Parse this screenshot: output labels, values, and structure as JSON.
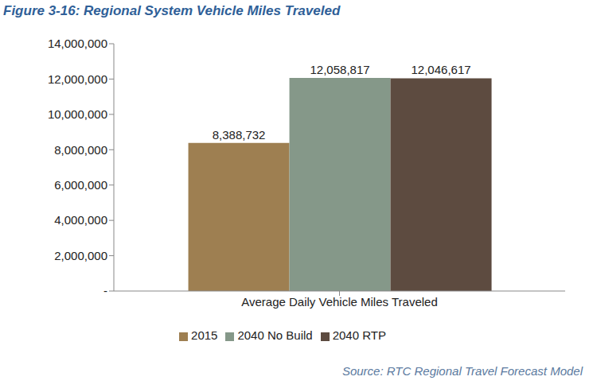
{
  "chart_data": {
    "type": "bar",
    "title": "Figure 3-16: Regional System Vehicle Miles Traveled",
    "source": "Source: RTC Regional Travel Forecast Model",
    "categories": [
      "Average Daily Vehicle Miles Traveled"
    ],
    "series": [
      {
        "name": "2015",
        "color": "#9e7f51",
        "values": [
          8388732
        ],
        "value_labels": [
          "8,388,732"
        ]
      },
      {
        "name": "2040 No Build",
        "color": "#859889",
        "values": [
          12058817
        ],
        "value_labels": [
          "12,058,817"
        ]
      },
      {
        "name": "2040 RTP",
        "color": "#5d4b40",
        "values": [
          12046617
        ],
        "value_labels": [
          "12,046,617"
        ]
      }
    ],
    "ylim": [
      0,
      14000000
    ],
    "yticks": [
      {
        "value": 0,
        "label": "-"
      },
      {
        "value": 2000000,
        "label": "2,000,000"
      },
      {
        "value": 4000000,
        "label": "4,000,000"
      },
      {
        "value": 6000000,
        "label": "6,000,000"
      },
      {
        "value": 8000000,
        "label": "8,000,000"
      },
      {
        "value": 10000000,
        "label": "10,000,000"
      },
      {
        "value": 12000000,
        "label": "12,000,000"
      },
      {
        "value": 14000000,
        "label": "14,000,000"
      }
    ],
    "grid": false,
    "legend": "bottom",
    "data_labels": true
  }
}
